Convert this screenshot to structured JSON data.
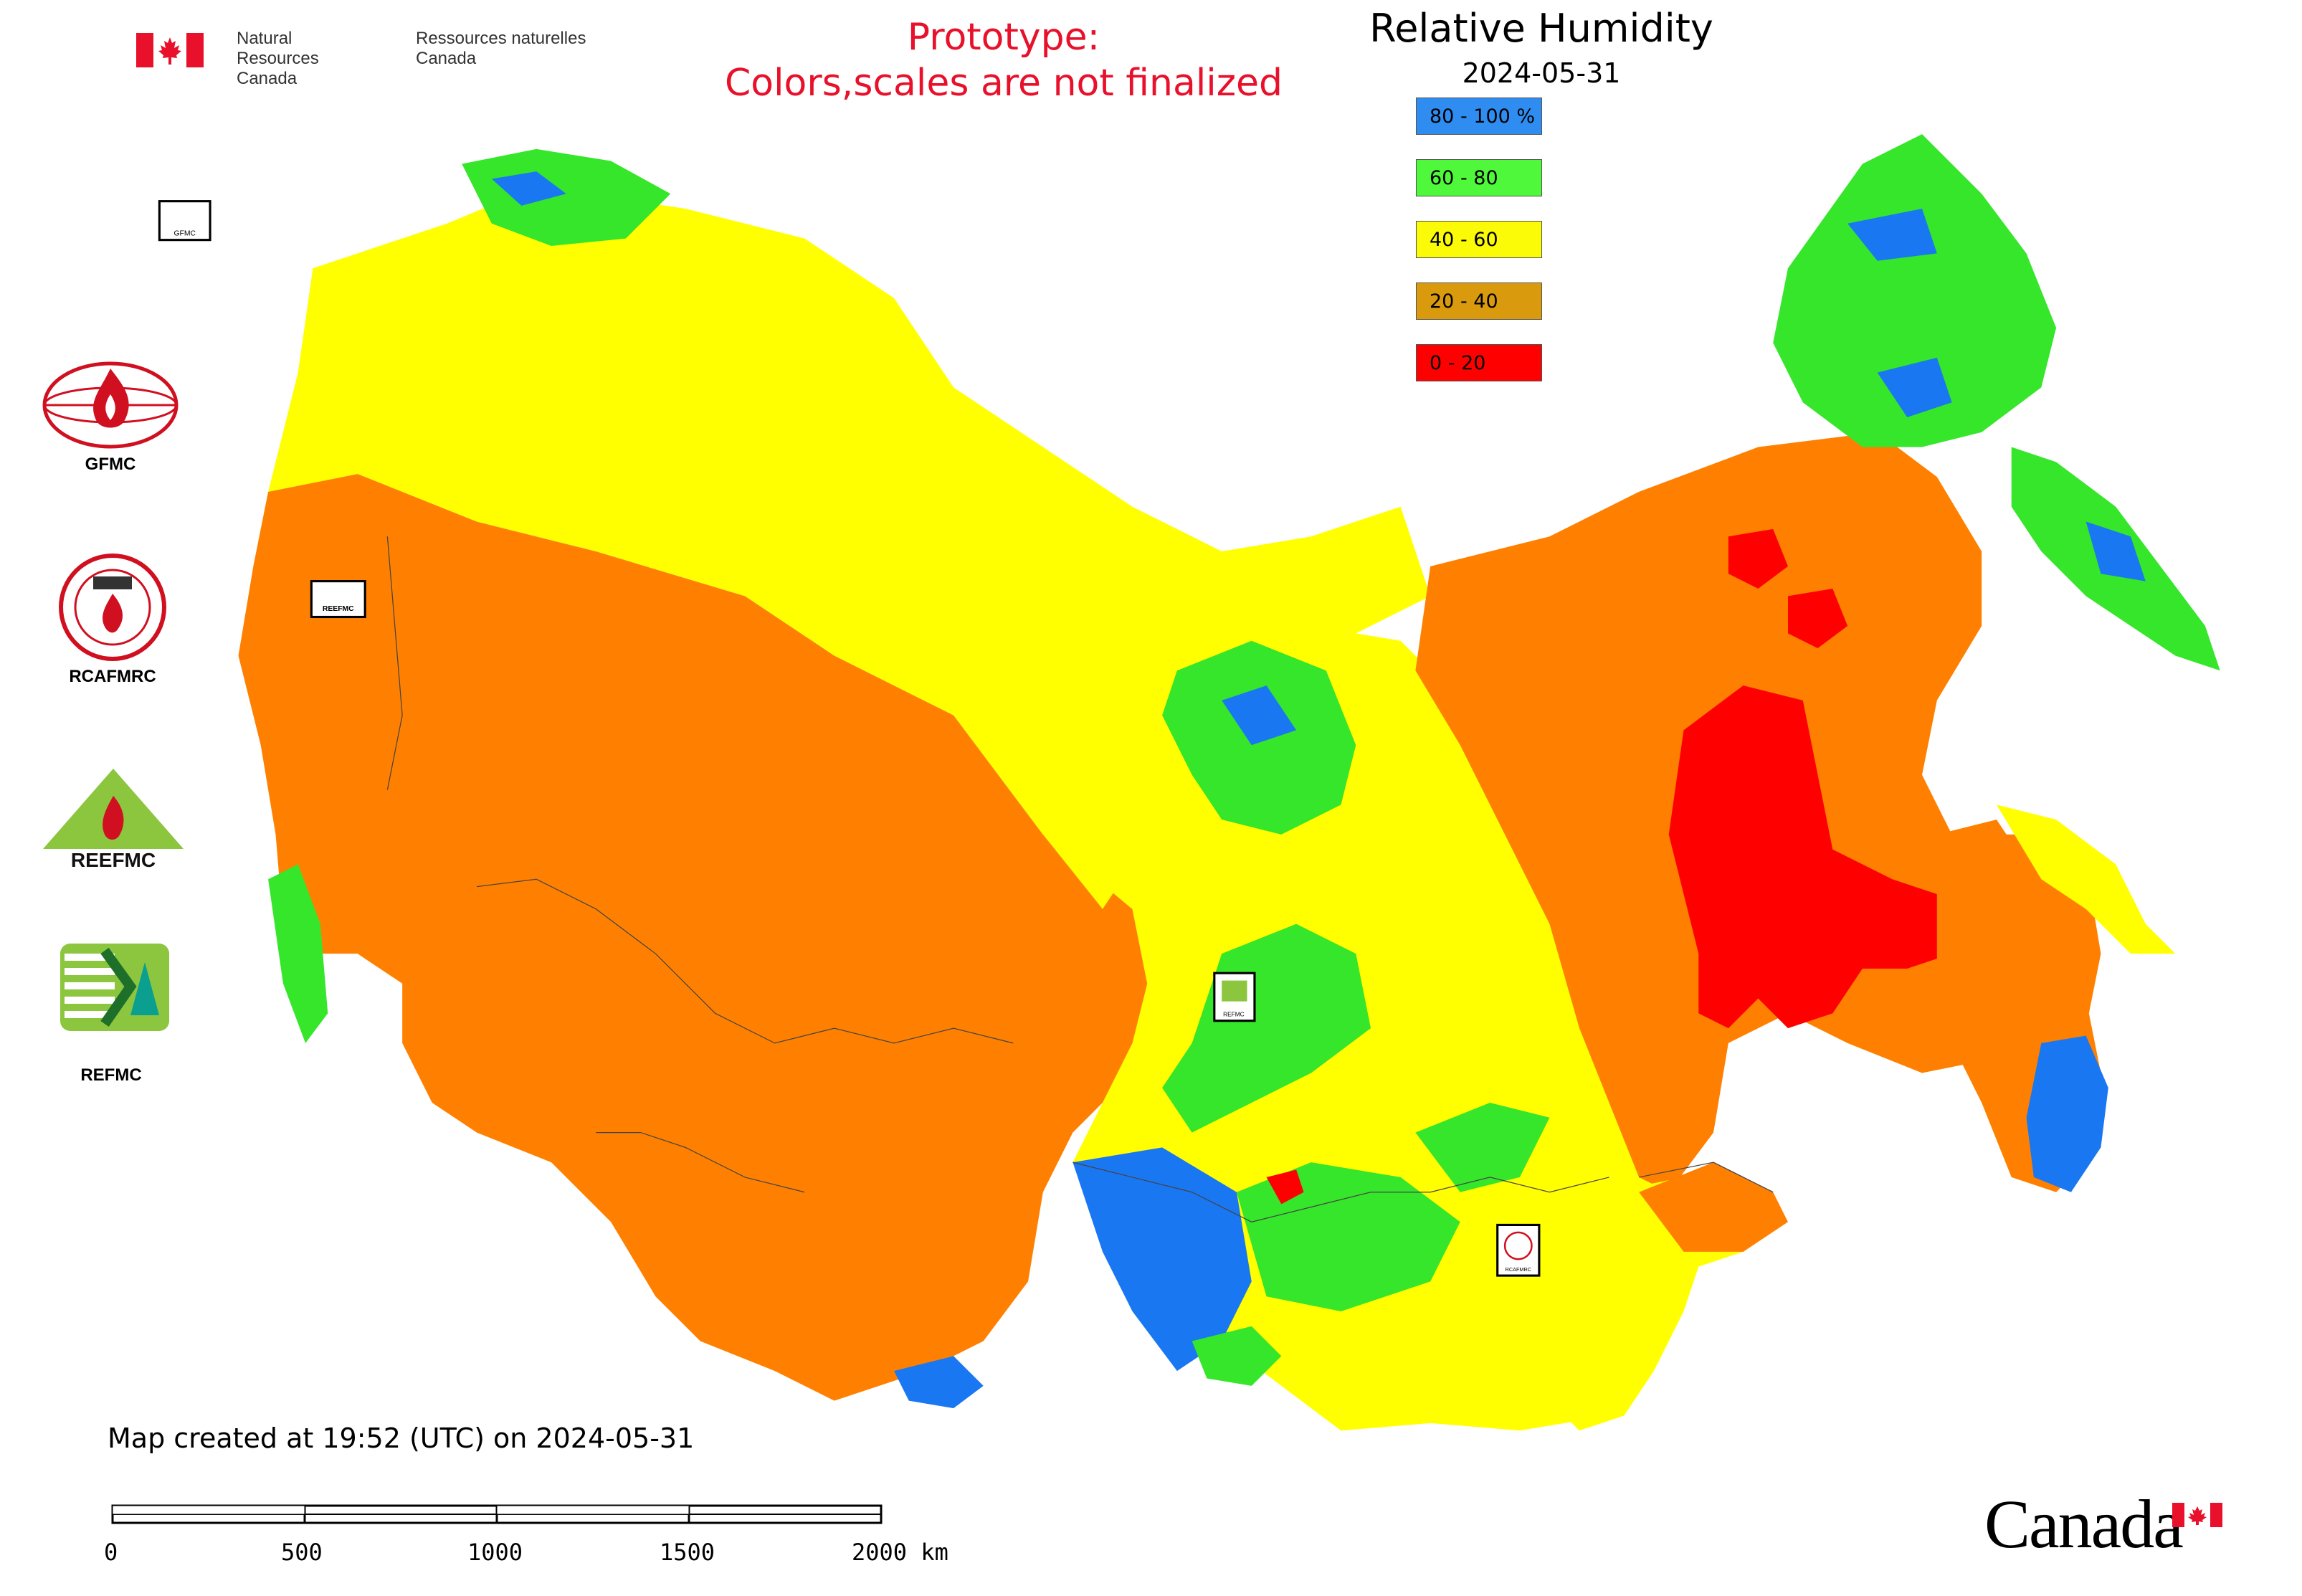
{
  "header": {
    "org_en_line1": "Natural Resources",
    "org_en_line2": "Canada",
    "org_fr_line1": "Ressources naturelles",
    "org_fr_line2": "Canada",
    "prototype_line1": "Prototype:",
    "prototype_line2": "Colors,scales are not finalized"
  },
  "map": {
    "title": "Relative Humidity",
    "date": "2024-05-31",
    "legend": [
      {
        "label": "80 - 100 %",
        "color": "#2f8cf0"
      },
      {
        "label": "60 - 80",
        "color": "#4ff83a"
      },
      {
        "label": "40 - 60",
        "color": "#fbfb08"
      },
      {
        "label": "20 - 40",
        "color": "#d99a0e"
      },
      {
        "label": "0 - 20",
        "color": "#ff0000"
      }
    ],
    "area_colors": {
      "blue": "#1a77f2",
      "green": "#35e62a",
      "yellow": "#ffff00",
      "orange": "#ff8000",
      "red": "#ff0000"
    },
    "center_badges": [
      {
        "label": "GFMC"
      },
      {
        "label": "REEFMC"
      },
      {
        "label": "REFMC"
      },
      {
        "label": "RCAFMRC"
      }
    ]
  },
  "sidebar": {
    "logos": [
      {
        "name": "GFMC",
        "label": "GFMC"
      },
      {
        "name": "RCAFMRC",
        "label": "RCAFMRC"
      },
      {
        "name": "REEFMC",
        "label": "REEFMC"
      },
      {
        "name": "REFMC",
        "label": "REFMC"
      }
    ]
  },
  "footer": {
    "created": "Map created at 19:52 (UTC) on 2024-05-31",
    "scale_ticks": [
      "0",
      "500",
      "1000",
      "1500",
      "2000 km"
    ],
    "wordmark": "Canada"
  }
}
